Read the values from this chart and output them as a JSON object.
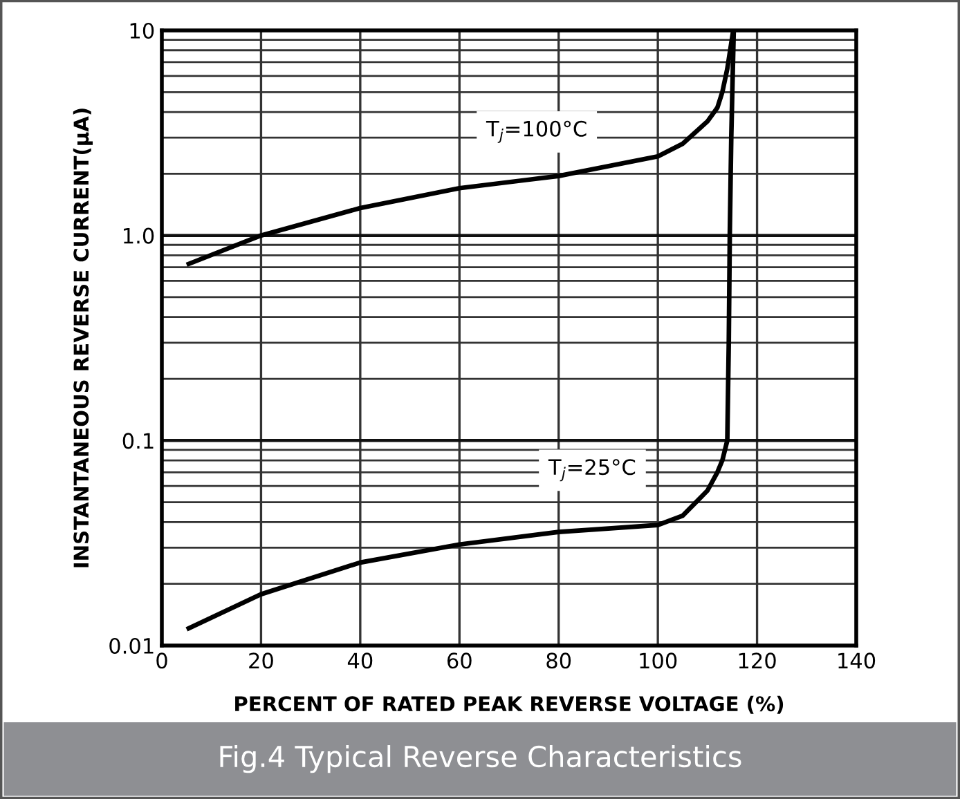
{
  "chart_data": {
    "type": "line",
    "title": "Fig.4 Typical Reverse Characteristics",
    "xlabel": "PERCENT OF RATED PEAK REVERSE VOLTAGE (%)",
    "ylabel": "INSTANTANEOUS REVERSE CURRENT(μA)",
    "series": [
      {
        "name": "T$_{j}$=100°C",
        "color": "#000000",
        "x": [
          5,
          20,
          40,
          60,
          80,
          100,
          105,
          110,
          112,
          113,
          114,
          115.2
        ],
        "values": [
          0.72,
          1.0,
          1.36,
          1.7,
          1.95,
          2.43,
          2.8,
          3.6,
          4.2,
          5.0,
          6.5,
          10
        ]
      },
      {
        "name": "T$_{j}$=25°C",
        "color": "#000000",
        "x": [
          5,
          20,
          40,
          60,
          80,
          100,
          105,
          110,
          112,
          113,
          114,
          114.3,
          114.5,
          114.8,
          115.3
        ],
        "values": [
          0.012,
          0.0178,
          0.0254,
          0.0311,
          0.0358,
          0.0387,
          0.043,
          0.057,
          0.07,
          0.08,
          0.1,
          0.3,
          1.0,
          3,
          10
        ]
      }
    ],
    "log": "y",
    "xlim": [
      0,
      140
    ],
    "ylim": [
      0.01,
      10
    ],
    "xticks": [
      0,
      20,
      40,
      60,
      80,
      100,
      120,
      140
    ],
    "yticks": [
      0.01,
      0.1,
      {
        "value": 1,
        "label": "1.0"
      },
      10
    ],
    "grid": true,
    "marker": "none",
    "line_style": "solid",
    "legend": false
  }
}
